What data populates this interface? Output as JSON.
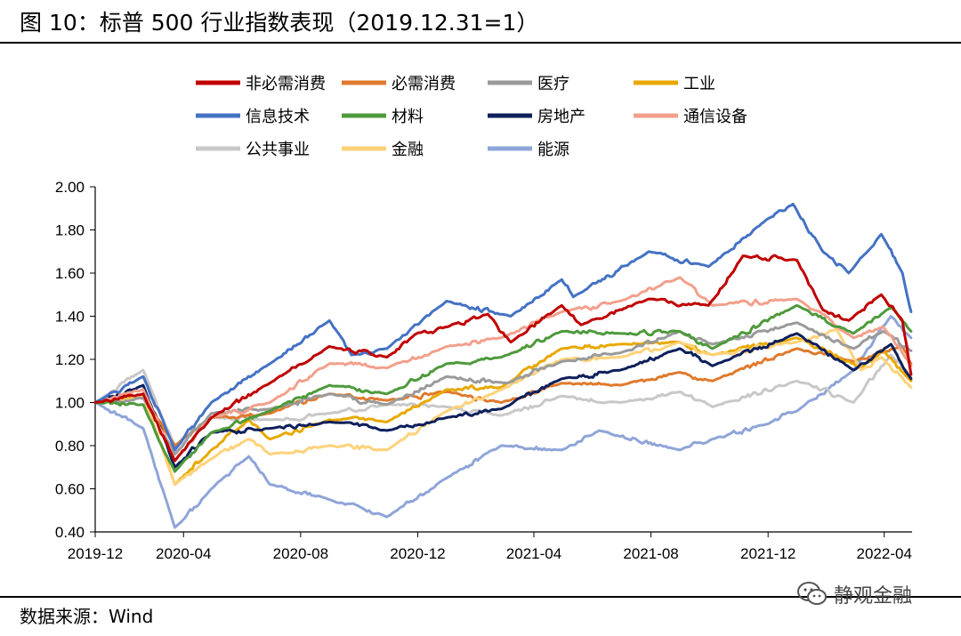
{
  "figure": {
    "title": "图 10：标普 500 行业指数表现（2019.12.31=1）",
    "source": "数据来源：Wind",
    "watermark": "静观金融",
    "watermark_icon": "wechat-icon"
  },
  "chart_data": {
    "type": "line",
    "title": "",
    "xlabel": "",
    "ylabel": "",
    "x_ticks": [
      "2019-12",
      "2020-04",
      "2020-08",
      "2020-12",
      "2021-04",
      "2021-08",
      "2021-12",
      "2022-04"
    ],
    "y_ticks": [
      "0.40",
      "0.60",
      "0.80",
      "1.00",
      "1.20",
      "1.40",
      "1.60",
      "1.80",
      "2.00"
    ],
    "ylim": [
      0.4,
      2.0
    ],
    "xlim": [
      "2019-12-31",
      "2022-04-30"
    ],
    "grid": false,
    "legend": "top",
    "series": [
      {
        "name": "非必需消费",
        "color": "#C00000",
        "points": [
          [
            "2019-12-31",
            1.0
          ],
          [
            "2020-02-19",
            1.04
          ],
          [
            "2020-03-23",
            0.73
          ],
          [
            "2020-04-30",
            0.93
          ],
          [
            "2020-06-30",
            1.09
          ],
          [
            "2020-08-31",
            1.26
          ],
          [
            "2020-10-30",
            1.21
          ],
          [
            "2020-11-30",
            1.32
          ],
          [
            "2020-12-31",
            1.35
          ],
          [
            "2021-02-12",
            1.41
          ],
          [
            "2021-03-08",
            1.28
          ],
          [
            "2021-04-30",
            1.45
          ],
          [
            "2021-05-20",
            1.36
          ],
          [
            "2021-07-30",
            1.48
          ],
          [
            "2021-09-30",
            1.45
          ],
          [
            "2021-11-05",
            1.68
          ],
          [
            "2021-12-31",
            1.66
          ],
          [
            "2022-01-27",
            1.43
          ],
          [
            "2022-02-23",
            1.38
          ],
          [
            "2022-03-29",
            1.5
          ],
          [
            "2022-04-20",
            1.38
          ],
          [
            "2022-04-29",
            1.13
          ]
        ]
      },
      {
        "name": "必需消费",
        "color": "#E07A2E",
        "points": [
          [
            "2019-12-31",
            1.0
          ],
          [
            "2020-02-19",
            1.03
          ],
          [
            "2020-03-23",
            0.8
          ],
          [
            "2020-04-30",
            0.93
          ],
          [
            "2020-06-30",
            0.95
          ],
          [
            "2020-08-31",
            1.04
          ],
          [
            "2020-10-30",
            1.01
          ],
          [
            "2020-12-31",
            1.05
          ],
          [
            "2021-02-26",
            1.0
          ],
          [
            "2021-04-30",
            1.09
          ],
          [
            "2021-06-30",
            1.08
          ],
          [
            "2021-08-31",
            1.14
          ],
          [
            "2021-10-04",
            1.1
          ],
          [
            "2021-12-31",
            1.25
          ],
          [
            "2022-02-28",
            1.19
          ],
          [
            "2022-04-20",
            1.26
          ],
          [
            "2022-04-29",
            1.18
          ]
        ]
      },
      {
        "name": "医疗",
        "color": "#9A9A9A",
        "points": [
          [
            "2019-12-31",
            1.0
          ],
          [
            "2020-02-19",
            1.02
          ],
          [
            "2020-03-23",
            0.76
          ],
          [
            "2020-04-30",
            0.95
          ],
          [
            "2020-06-30",
            0.97
          ],
          [
            "2020-08-31",
            1.04
          ],
          [
            "2020-10-30",
            0.99
          ],
          [
            "2020-12-31",
            1.12
          ],
          [
            "2021-03-04",
            1.09
          ],
          [
            "2021-04-30",
            1.19
          ],
          [
            "2021-06-30",
            1.23
          ],
          [
            "2021-08-31",
            1.33
          ],
          [
            "2021-10-04",
            1.27
          ],
          [
            "2021-12-31",
            1.37
          ],
          [
            "2022-02-28",
            1.25
          ],
          [
            "2022-03-31",
            1.33
          ],
          [
            "2022-04-29",
            1.24
          ]
        ]
      },
      {
        "name": "工业",
        "color": "#E8A800",
        "points": [
          [
            "2019-12-31",
            1.0
          ],
          [
            "2020-02-19",
            1.03
          ],
          [
            "2020-03-23",
            0.62
          ],
          [
            "2020-04-30",
            0.78
          ],
          [
            "2020-06-08",
            0.92
          ],
          [
            "2020-06-30",
            0.83
          ],
          [
            "2020-08-31",
            0.92
          ],
          [
            "2020-10-30",
            0.91
          ],
          [
            "2020-12-31",
            1.06
          ],
          [
            "2021-02-26",
            1.07
          ],
          [
            "2021-04-30",
            1.25
          ],
          [
            "2021-06-30",
            1.27
          ],
          [
            "2021-08-31",
            1.28
          ],
          [
            "2021-10-04",
            1.22
          ],
          [
            "2021-12-31",
            1.3
          ],
          [
            "2022-03-08",
            1.16
          ],
          [
            "2022-03-31",
            1.24
          ],
          [
            "2022-04-29",
            1.1
          ]
        ]
      },
      {
        "name": "信息技术",
        "color": "#4472C4",
        "points": [
          [
            "2019-12-31",
            1.0
          ],
          [
            "2020-02-19",
            1.12
          ],
          [
            "2020-03-23",
            0.78
          ],
          [
            "2020-04-30",
            1.0
          ],
          [
            "2020-06-30",
            1.18
          ],
          [
            "2020-08-31",
            1.38
          ],
          [
            "2020-09-23",
            1.22
          ],
          [
            "2020-10-30",
            1.25
          ],
          [
            "2020-12-31",
            1.47
          ],
          [
            "2021-03-08",
            1.4
          ],
          [
            "2021-04-30",
            1.57
          ],
          [
            "2021-05-12",
            1.49
          ],
          [
            "2021-07-30",
            1.7
          ],
          [
            "2021-09-30",
            1.63
          ],
          [
            "2021-11-30",
            1.85
          ],
          [
            "2021-12-27",
            1.92
          ],
          [
            "2022-01-27",
            1.7
          ],
          [
            "2022-02-23",
            1.6
          ],
          [
            "2022-03-29",
            1.78
          ],
          [
            "2022-04-20",
            1.6
          ],
          [
            "2022-04-29",
            1.42
          ]
        ]
      },
      {
        "name": "材料",
        "color": "#4E9A3C",
        "points": [
          [
            "2019-12-31",
            1.0
          ],
          [
            "2020-02-19",
            0.99
          ],
          [
            "2020-03-23",
            0.68
          ],
          [
            "2020-04-30",
            0.86
          ],
          [
            "2020-06-30",
            0.96
          ],
          [
            "2020-08-31",
            1.08
          ],
          [
            "2020-10-30",
            1.04
          ],
          [
            "2020-12-31",
            1.18
          ],
          [
            "2021-02-26",
            1.21
          ],
          [
            "2021-04-30",
            1.33
          ],
          [
            "2021-06-30",
            1.32
          ],
          [
            "2021-08-31",
            1.33
          ],
          [
            "2021-10-04",
            1.25
          ],
          [
            "2021-12-31",
            1.45
          ],
          [
            "2022-02-28",
            1.32
          ],
          [
            "2022-04-08",
            1.44
          ],
          [
            "2022-04-29",
            1.33
          ]
        ]
      },
      {
        "name": "房地产",
        "color": "#0D1F5C",
        "points": [
          [
            "2019-12-31",
            1.0
          ],
          [
            "2020-02-19",
            1.08
          ],
          [
            "2020-03-23",
            0.7
          ],
          [
            "2020-04-30",
            0.86
          ],
          [
            "2020-06-30",
            0.88
          ],
          [
            "2020-08-31",
            0.91
          ],
          [
            "2020-10-30",
            0.87
          ],
          [
            "2020-12-31",
            0.93
          ],
          [
            "2021-02-26",
            0.97
          ],
          [
            "2021-04-30",
            1.11
          ],
          [
            "2021-06-30",
            1.15
          ],
          [
            "2021-08-31",
            1.25
          ],
          [
            "2021-10-04",
            1.17
          ],
          [
            "2021-12-31",
            1.32
          ],
          [
            "2022-02-28",
            1.15
          ],
          [
            "2022-04-08",
            1.27
          ],
          [
            "2022-04-29",
            1.11
          ]
        ]
      },
      {
        "name": "通信设备",
        "color": "#F2A08C",
        "points": [
          [
            "2019-12-31",
            1.0
          ],
          [
            "2020-02-19",
            1.06
          ],
          [
            "2020-03-23",
            0.73
          ],
          [
            "2020-04-30",
            0.93
          ],
          [
            "2020-06-30",
            1.0
          ],
          [
            "2020-08-31",
            1.18
          ],
          [
            "2020-10-30",
            1.16
          ],
          [
            "2020-12-31",
            1.26
          ],
          [
            "2021-02-26",
            1.3
          ],
          [
            "2021-04-30",
            1.42
          ],
          [
            "2021-06-30",
            1.47
          ],
          [
            "2021-08-31",
            1.58
          ],
          [
            "2021-10-04",
            1.45
          ],
          [
            "2021-12-31",
            1.48
          ],
          [
            "2022-02-28",
            1.3
          ],
          [
            "2022-03-31",
            1.35
          ],
          [
            "2022-04-29",
            1.17
          ]
        ]
      },
      {
        "name": "公共事业",
        "color": "#C8C8C8",
        "points": [
          [
            "2019-12-31",
            1.0
          ],
          [
            "2020-02-19",
            1.15
          ],
          [
            "2020-03-23",
            0.8
          ],
          [
            "2020-04-30",
            0.93
          ],
          [
            "2020-06-30",
            0.92
          ],
          [
            "2020-08-31",
            0.95
          ],
          [
            "2020-10-30",
            0.99
          ],
          [
            "2020-12-31",
            0.98
          ],
          [
            "2021-02-26",
            0.94
          ],
          [
            "2021-04-30",
            1.03
          ],
          [
            "2021-06-30",
            1.0
          ],
          [
            "2021-08-31",
            1.05
          ],
          [
            "2021-10-04",
            0.98
          ],
          [
            "2021-12-31",
            1.1
          ],
          [
            "2022-02-28",
            1.0
          ],
          [
            "2022-04-08",
            1.22
          ],
          [
            "2022-04-29",
            1.12
          ]
        ]
      },
      {
        "name": "金融",
        "color": "#FFD27A",
        "points": [
          [
            "2019-12-31",
            1.0
          ],
          [
            "2020-02-19",
            1.03
          ],
          [
            "2020-03-23",
            0.62
          ],
          [
            "2020-04-30",
            0.74
          ],
          [
            "2020-06-08",
            0.83
          ],
          [
            "2020-06-30",
            0.76
          ],
          [
            "2020-08-31",
            0.8
          ],
          [
            "2020-10-30",
            0.78
          ],
          [
            "2020-12-31",
            0.96
          ],
          [
            "2021-02-26",
            1.06
          ],
          [
            "2021-04-30",
            1.2
          ],
          [
            "2021-06-30",
            1.21
          ],
          [
            "2021-08-31",
            1.28
          ],
          [
            "2021-10-04",
            1.22
          ],
          [
            "2021-12-31",
            1.28
          ],
          [
            "2022-02-10",
            1.34
          ],
          [
            "2022-03-08",
            1.15
          ],
          [
            "2022-03-29",
            1.21
          ],
          [
            "2022-04-29",
            1.07
          ]
        ]
      },
      {
        "name": "能源",
        "color": "#8FA5D8",
        "points": [
          [
            "2019-12-31",
            1.0
          ],
          [
            "2020-02-19",
            0.88
          ],
          [
            "2020-03-23",
            0.42
          ],
          [
            "2020-04-30",
            0.6
          ],
          [
            "2020-06-08",
            0.75
          ],
          [
            "2020-06-30",
            0.62
          ],
          [
            "2020-08-31",
            0.55
          ],
          [
            "2020-10-30",
            0.47
          ],
          [
            "2020-12-31",
            0.65
          ],
          [
            "2021-02-26",
            0.8
          ],
          [
            "2021-04-30",
            0.78
          ],
          [
            "2021-06-08",
            0.87
          ],
          [
            "2021-08-31",
            0.78
          ],
          [
            "2021-10-04",
            0.83
          ],
          [
            "2021-11-30",
            0.9
          ],
          [
            "2021-12-31",
            0.96
          ],
          [
            "2022-02-28",
            1.15
          ],
          [
            "2022-04-08",
            1.4
          ],
          [
            "2022-04-29",
            1.3
          ]
        ]
      }
    ]
  }
}
